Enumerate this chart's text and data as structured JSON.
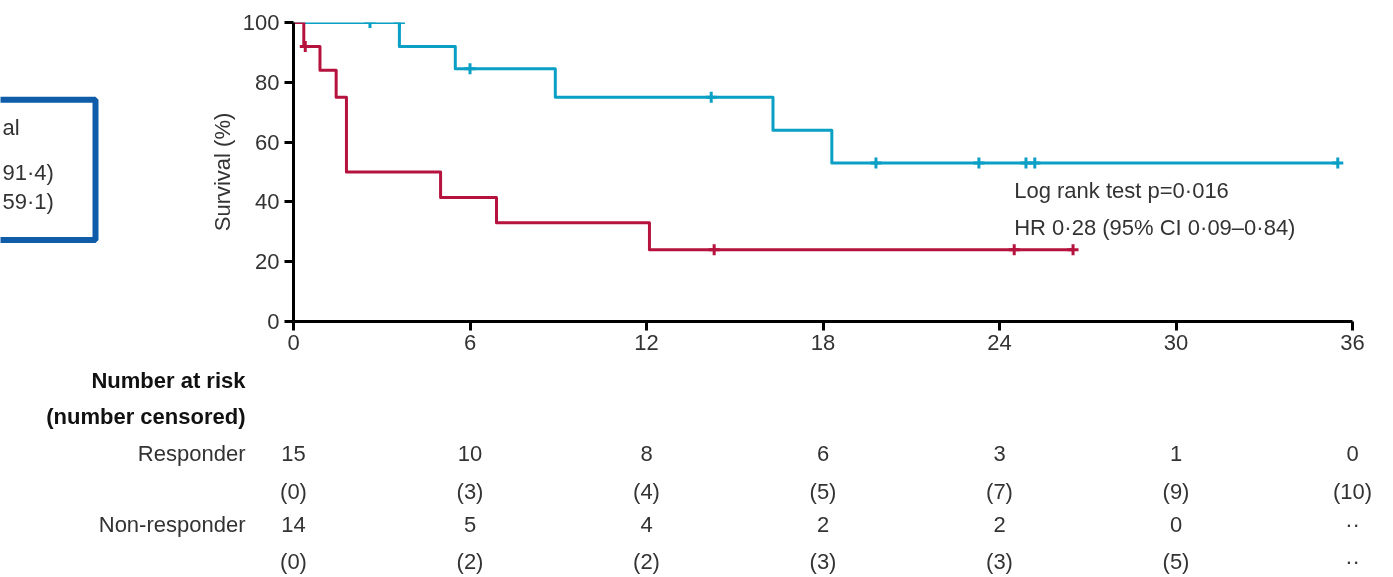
{
  "chart_data": {
    "type": "step",
    "ylabel": "Survival (%)",
    "xlim": [
      0,
      36
    ],
    "xticks": [
      0,
      6,
      12,
      18,
      24,
      30,
      36
    ],
    "ylim": [
      0,
      100
    ],
    "yticks": [
      0,
      20,
      40,
      60,
      80,
      100
    ],
    "grid": false,
    "series": [
      {
        "color": "#0a9fc4",
        "x": [
          0,
          3.6,
          5.5,
          8.9,
          16.3,
          18.3,
          35.5
        ],
        "values": [
          100,
          92,
          84.5,
          75,
          64,
          53,
          53
        ]
      },
      {
        "color": "#b5123e",
        "x": [
          0,
          0.35,
          0.9,
          1.45,
          1.8,
          5.0,
          6.9,
          12.1,
          26.5
        ],
        "values": [
          100,
          92,
          84,
          75,
          50,
          41.5,
          33,
          24,
          24
        ]
      },
      {
        "type": "scatter",
        "marker": "cross",
        "color": "#0a9fc4",
        "x": [
          2.6,
          3.6,
          6.0,
          14.2,
          19.8,
          23.3,
          24.9,
          25.2,
          35.5
        ],
        "values": [
          100,
          100,
          84.5,
          75,
          53,
          53,
          53,
          53,
          53
        ]
      },
      {
        "type": "scatter",
        "marker": "cross",
        "color": "#b5123e",
        "x": [
          0.4,
          14.3,
          24.5,
          26.5
        ],
        "values": [
          92,
          24,
          24,
          24
        ]
      }
    ],
    "annotations": [
      "Log rank test p=0·016",
      "HR 0·28 (95% CI 0·09–0·84)",
      "al",
      "91·4)",
      "59·1)",
      "Number at risk",
      "(number censored)",
      "Responder",
      "15",
      "10",
      "8",
      "6",
      "3",
      "1",
      "0",
      "(0)",
      "(3)",
      "(4)",
      "(5)",
      "(7)",
      "(9)",
      "(10)",
      "Non-responder",
      "14",
      "5",
      "4",
      "2",
      "2",
      "0",
      "··",
      "(0)",
      "(2)",
      "(2)",
      "(3)",
      "(3)",
      "(5)",
      "··"
    ]
  }
}
